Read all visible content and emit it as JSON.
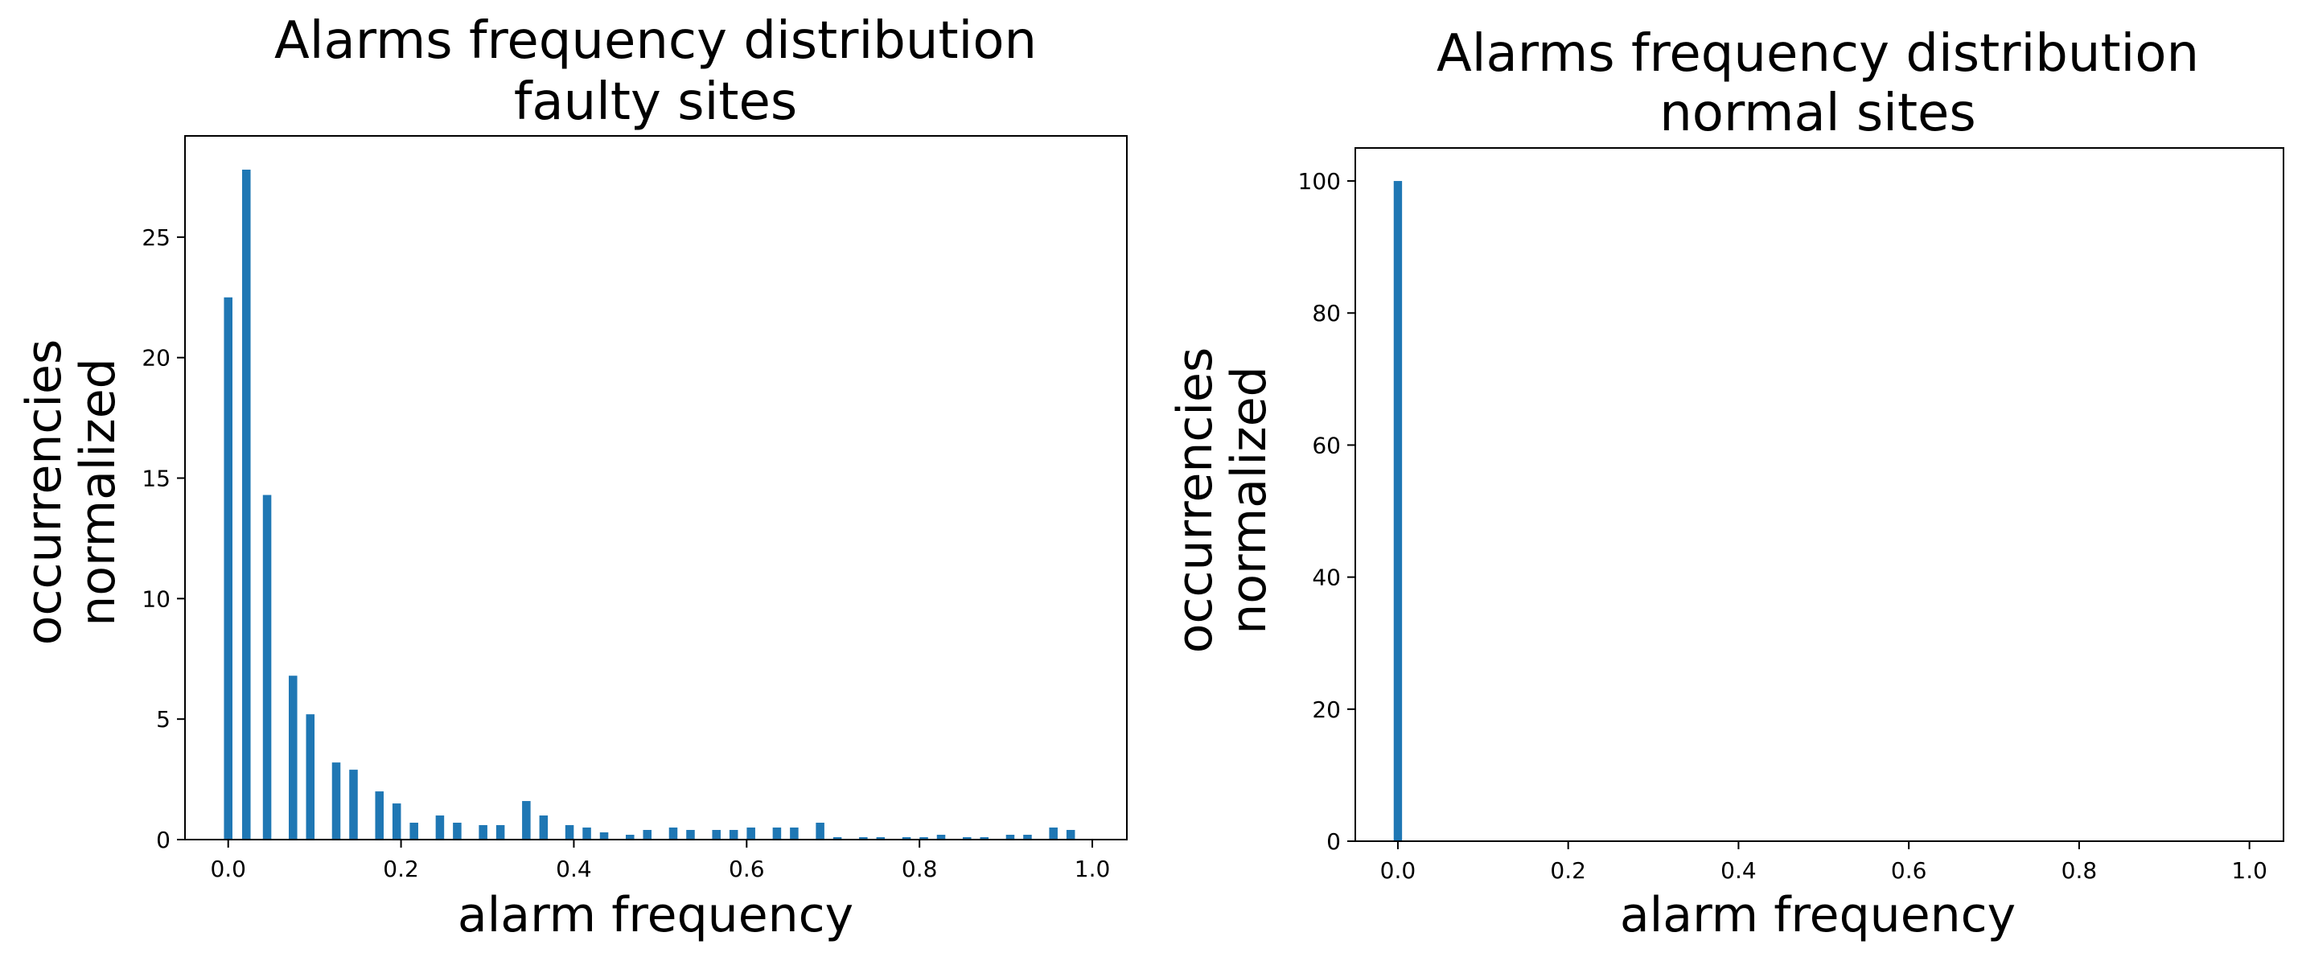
{
  "chart_data": [
    {
      "type": "bar",
      "title_line1": "Alarms frequency distribution",
      "title_line2": "faulty sites",
      "xlabel": "alarm frequency",
      "ylabel_line1": "occurrencies",
      "ylabel_line2": "normalized",
      "xlim": [
        -0.05,
        1.04
      ],
      "ylim": [
        0,
        29.2
      ],
      "xticks": [
        0.0,
        0.2,
        0.4,
        0.6,
        0.8,
        1.0
      ],
      "xtick_labels": [
        "0.0",
        "0.2",
        "0.4",
        "0.6",
        "0.8",
        "1.0"
      ],
      "yticks": [
        0,
        5,
        10,
        15,
        20,
        25
      ],
      "ytick_labels": [
        "0",
        "5",
        "10",
        "15",
        "20",
        "25"
      ],
      "grid": false,
      "bar_color": "#1f77b4",
      "x": [
        0.0,
        0.021,
        0.045,
        0.075,
        0.095,
        0.125,
        0.145,
        0.175,
        0.195,
        0.215,
        0.245,
        0.265,
        0.295,
        0.315,
        0.345,
        0.365,
        0.395,
        0.415,
        0.435,
        0.465,
        0.485,
        0.515,
        0.535,
        0.565,
        0.585,
        0.605,
        0.635,
        0.655,
        0.685,
        0.705,
        0.735,
        0.755,
        0.785,
        0.805,
        0.825,
        0.855,
        0.875,
        0.905,
        0.925,
        0.955,
        0.975
      ],
      "values": [
        22.5,
        27.8,
        14.3,
        6.8,
        5.2,
        3.2,
        2.9,
        2.0,
        1.5,
        0.7,
        1.0,
        0.7,
        0.6,
        0.6,
        1.6,
        1.0,
        0.6,
        0.5,
        0.3,
        0.2,
        0.4,
        0.5,
        0.4,
        0.4,
        0.4,
        0.5,
        0.5,
        0.5,
        0.7,
        0.1,
        0.1,
        0.1,
        0.1,
        0.1,
        0.2,
        0.1,
        0.1,
        0.2,
        0.2,
        0.5,
        0.4
      ]
    },
    {
      "type": "bar",
      "title_line1": "Alarms frequency distribution",
      "title_line2": "normal sites",
      "xlabel": "alarm frequency",
      "ylabel_line1": "occurrencies",
      "ylabel_line2": "normalized",
      "xlim": [
        -0.05,
        1.04
      ],
      "ylim": [
        0,
        105
      ],
      "xticks": [
        0.0,
        0.2,
        0.4,
        0.6,
        0.8,
        1.0
      ],
      "xtick_labels": [
        "0.0",
        "0.2",
        "0.4",
        "0.6",
        "0.8",
        "1.0"
      ],
      "yticks": [
        0,
        20,
        40,
        60,
        80,
        100
      ],
      "ytick_labels": [
        "0",
        "20",
        "40",
        "60",
        "80",
        "100"
      ],
      "grid": false,
      "bar_color": "#1f77b4",
      "x": [
        0.0
      ],
      "values": [
        100
      ]
    }
  ]
}
